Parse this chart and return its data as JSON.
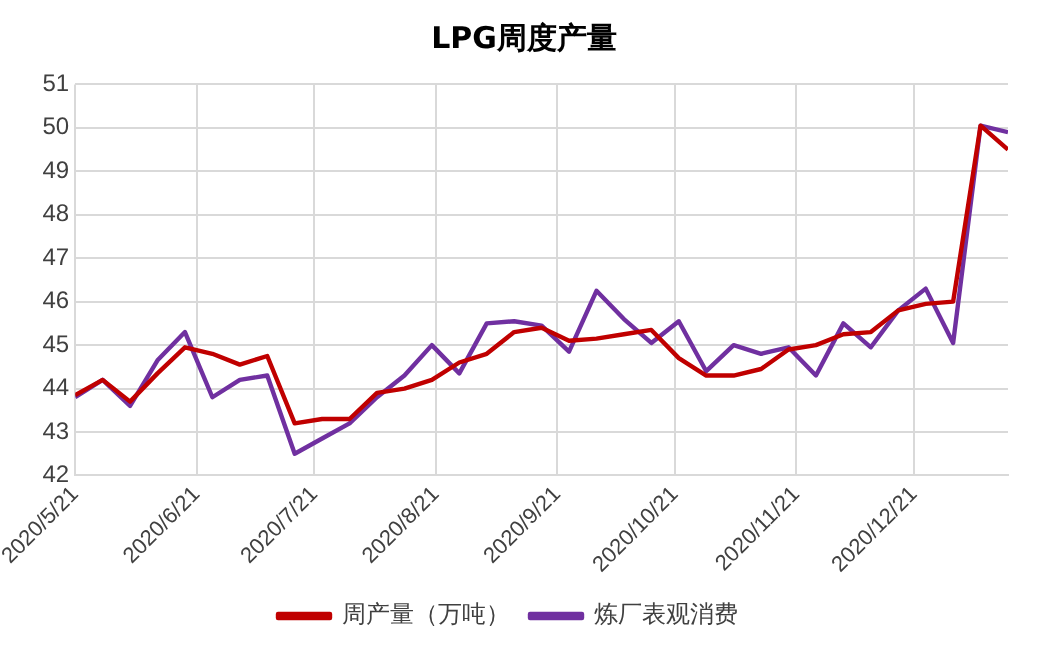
{
  "chart_data": {
    "type": "line",
    "title": "LPG周度产量",
    "x": [
      "2020-05-21",
      "2020-05-28",
      "2020-06-04",
      "2020-06-11",
      "2020-06-18",
      "2020-06-25",
      "2020-07-02",
      "2020-07-09",
      "2020-07-16",
      "2020-07-23",
      "2020-07-30",
      "2020-08-06",
      "2020-08-13",
      "2020-08-20",
      "2020-08-27",
      "2020-09-03",
      "2020-09-10",
      "2020-09-17",
      "2020-09-24",
      "2020-10-01",
      "2020-10-08",
      "2020-10-15",
      "2020-10-22",
      "2020-10-29",
      "2020-11-05",
      "2020-11-12",
      "2020-11-19",
      "2020-11-26",
      "2020-12-03",
      "2020-12-10",
      "2020-12-17",
      "2020-12-24",
      "2020-12-31",
      "2021-01-07",
      "2021-01-14"
    ],
    "series": [
      {
        "name": "周产量（万吨）",
        "color": "#c00000",
        "values": [
          43.85,
          44.2,
          43.7,
          44.35,
          44.95,
          44.8,
          44.55,
          44.75,
          43.2,
          43.3,
          43.3,
          43.9,
          44.0,
          44.2,
          44.6,
          44.8,
          45.3,
          45.4,
          45.1,
          45.15,
          45.25,
          45.35,
          44.7,
          44.3,
          44.3,
          44.45,
          44.9,
          45.0,
          45.25,
          45.3,
          45.8,
          45.95,
          46.0,
          50.05,
          49.5
        ]
      },
      {
        "name": "炼厂表观消费",
        "color": "#7030a0",
        "values": [
          43.8,
          44.2,
          43.6,
          44.65,
          45.3,
          43.8,
          44.2,
          44.3,
          42.5,
          42.85,
          43.2,
          43.8,
          44.3,
          45.0,
          44.35,
          45.5,
          45.55,
          45.45,
          44.85,
          46.25,
          45.6,
          45.05,
          45.55,
          44.4,
          45.0,
          44.8,
          44.95,
          44.3,
          45.5,
          44.95,
          45.8,
          46.3,
          45.05,
          50.05,
          49.9
        ]
      }
    ],
    "xlim": [
      "2020-05-21",
      "2021-01-14"
    ],
    "xticks": [
      {
        "value": "2020-05-21",
        "label": "2020/5/21"
      },
      {
        "value": "2020-06-21",
        "label": "2020/6/21"
      },
      {
        "value": "2020-07-21",
        "label": "2020/7/21"
      },
      {
        "value": "2020-08-21",
        "label": "2020/8/21"
      },
      {
        "value": "2020-09-21",
        "label": "2020/9/21"
      },
      {
        "value": "2020-10-21",
        "label": "2020/10/21"
      },
      {
        "value": "2020-11-21",
        "label": "2020/11/21"
      },
      {
        "value": "2020-12-21",
        "label": "2020/12/21"
      }
    ],
    "ylim": [
      42,
      51
    ],
    "yticks": [
      42,
      43,
      44,
      45,
      46,
      47,
      48,
      49,
      50,
      51
    ],
    "grid": true,
    "legend": "bottom",
    "marker": "none",
    "line_style": "solid"
  }
}
